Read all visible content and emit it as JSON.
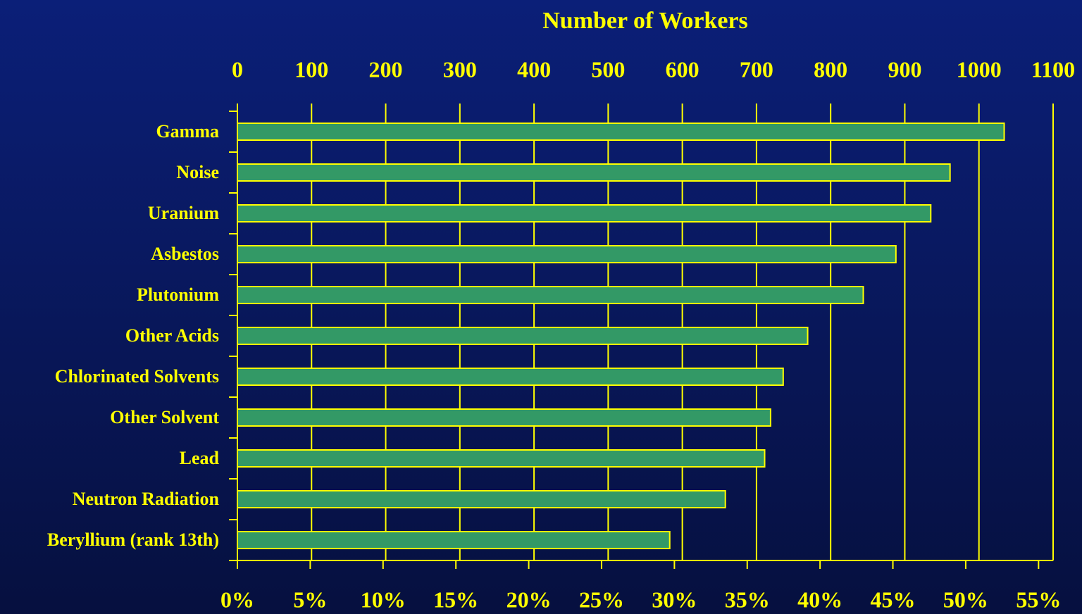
{
  "chart_data": {
    "type": "bar",
    "orientation": "horizontal",
    "title": "Number of Workers",
    "categories": [
      "Gamma",
      "Noise",
      "Uranium",
      "Asbestos",
      "Plutonium",
      "Other Acids",
      "Chlorinated Solvents",
      "Other Solvent",
      "Lead",
      "Neutron Radiation",
      "Beryllium (rank 13th)"
    ],
    "values": [
      1034,
      961,
      935,
      888,
      844,
      769,
      736,
      719,
      711,
      658,
      583
    ],
    "color": "#339966",
    "edge_color": "#ffff00",
    "xlim": [
      0,
      1100
    ],
    "xticks": [
      0,
      100,
      200,
      300,
      400,
      500,
      600,
      700,
      800,
      900,
      1000,
      1100
    ],
    "x2lim": [
      0,
      56
    ],
    "x2ticks": [
      {
        "value": 0,
        "label": "0%"
      },
      {
        "value": 5,
        "label": "5%"
      },
      {
        "value": 10,
        "label": "10%"
      },
      {
        "value": 15,
        "label": "15%"
      },
      {
        "value": 20,
        "label": "20%"
      },
      {
        "value": 25,
        "label": "25%"
      },
      {
        "value": 30,
        "label": "30%"
      },
      {
        "value": 35,
        "label": "35%"
      },
      {
        "value": 40,
        "label": "40%"
      },
      {
        "value": 45,
        "label": "45%"
      },
      {
        "value": 50,
        "label": "50%"
      },
      {
        "value": 55,
        "label": "55%"
      }
    ],
    "grid": true
  }
}
